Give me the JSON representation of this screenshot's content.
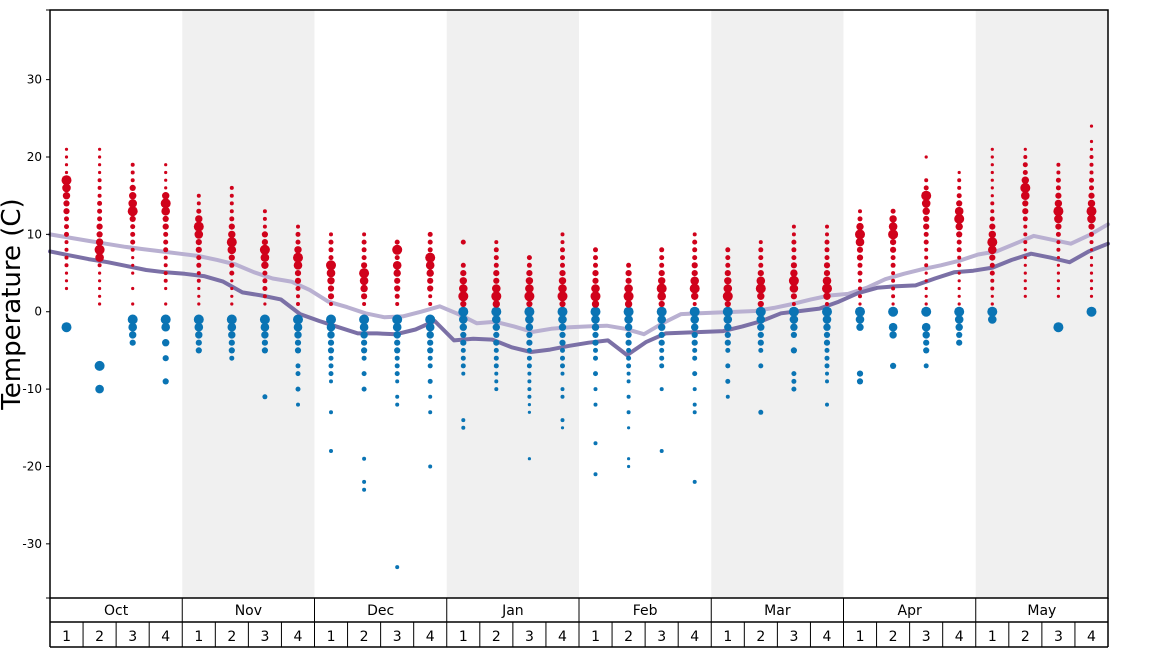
{
  "chart_data": {
    "type": "scatter",
    "ylabel": "Temperature (C)",
    "ylim": [
      -37,
      39
    ],
    "y_ticks": [
      "30",
      "20",
      "10",
      "0",
      "-10",
      "-20",
      "-30"
    ],
    "y_tick_values": [
      30,
      20,
      10,
      0,
      -10,
      -20,
      -30
    ],
    "months": [
      "Oct",
      "Nov",
      "Dec",
      "Jan",
      "Feb",
      "Mar",
      "Apr",
      "May"
    ],
    "weeks": [
      "1",
      "2",
      "3",
      "4"
    ],
    "shaded_months": [
      "Nov",
      "Jan",
      "Mar",
      "May"
    ],
    "colors": {
      "warm_dots": "#d0021b",
      "cold_dots": "#0a74b4",
      "line_upper": "#b9b0d1",
      "line_lower": "#7b70a6",
      "shade": "#f0f0f0"
    },
    "series": [
      {
        "values": [
          10,
          9.6,
          9.2,
          8.8,
          8.4,
          8.1,
          7.8,
          7.5,
          7.2,
          6.7,
          6.1,
          5.1,
          4.3,
          3.9,
          2.8,
          1.3,
          0.6,
          -0.2,
          -0.7,
          -0.6,
          0,
          0.7,
          -0.3,
          -1.5,
          -1.3,
          -1.9,
          -2.6,
          -2.2,
          -2,
          -1.9,
          -1.8,
          -2.2,
          -2.9,
          -1.5,
          -0.3,
          -0.2,
          -0.1,
          0,
          0.1,
          0.5,
          1,
          1.6,
          2.1,
          2.3,
          3.1,
          4.2,
          4.9,
          5.5,
          6,
          6.6,
          7.4,
          7.8,
          8.8,
          9.8,
          9.3,
          8.8,
          9.9,
          11.3
        ]
      },
      {
        "values": [
          7.8,
          7.3,
          6.8,
          6.4,
          5.9,
          5.4,
          5.1,
          4.9,
          4.6,
          3.9,
          2.5,
          2.1,
          1.6,
          -0.3,
          -1.2,
          -2,
          -2.8,
          -2.8,
          -2.9,
          -2.3,
          -1.2,
          -3.7,
          -3.5,
          -3.6,
          -4.6,
          -5.2,
          -4.9,
          -4.4,
          -4,
          -3.7,
          -5.6,
          -3.9,
          -2.8,
          -2.7,
          -2.6,
          -2.5,
          -1.9,
          -1.2,
          -0.2,
          0.1,
          0.4,
          1.3,
          2.4,
          3.1,
          3.3,
          3.4,
          4.3,
          5.1,
          5.3,
          5.7,
          6.7,
          7.5,
          7,
          6.4,
          7.8,
          8.8
        ]
      }
    ],
    "warm_observations": [
      [
        17,
        16,
        15,
        14,
        13,
        12,
        11,
        10,
        9,
        8,
        7,
        6,
        5,
        4,
        3,
        18,
        19,
        20,
        21
      ],
      [
        8,
        7,
        9,
        10,
        11,
        12,
        13,
        14,
        15,
        16,
        17,
        6,
        5,
        4,
        3,
        2,
        1,
        19,
        21,
        20,
        18
      ],
      [
        13,
        14,
        15,
        16,
        12,
        11,
        10,
        9,
        8,
        17,
        18,
        19,
        7,
        6,
        5,
        3,
        1
      ],
      [
        14,
        13,
        15,
        12,
        11,
        10,
        9,
        8,
        7,
        6,
        5,
        4,
        3,
        16,
        17,
        18,
        19,
        1
      ],
      [
        11,
        10,
        12,
        9,
        8,
        7,
        6,
        13,
        14,
        15,
        5,
        4,
        3,
        2,
        1
      ],
      [
        9,
        8,
        10,
        11,
        7,
        6,
        5,
        12,
        13,
        14,
        15,
        16,
        4,
        3,
        2,
        1
      ],
      [
        8,
        7,
        6,
        9,
        10,
        5,
        4,
        3,
        11,
        12,
        13,
        2,
        1
      ],
      [
        7,
        6,
        8,
        5,
        4,
        9,
        10,
        3,
        2,
        11,
        1
      ],
      [
        6,
        5,
        4,
        3,
        2,
        7,
        8,
        9,
        10,
        1
      ],
      [
        5,
        4,
        3,
        2,
        6,
        7,
        8,
        9,
        10,
        1
      ],
      [
        8,
        6,
        5,
        4,
        3,
        2,
        7,
        9,
        1
      ],
      [
        7,
        6,
        5,
        4,
        3,
        8,
        9,
        10,
        2,
        1
      ],
      [
        2,
        3,
        4,
        1,
        5,
        6,
        9
      ],
      [
        2,
        3,
        1,
        4,
        5,
        6,
        7,
        8,
        9
      ],
      [
        2,
        3,
        4,
        1,
        5,
        6,
        7
      ],
      [
        2,
        3,
        4,
        1,
        5,
        6,
        7,
        8,
        9,
        10
      ],
      [
        2,
        3,
        1,
        4,
        5,
        6,
        7,
        8
      ],
      [
        2,
        3,
        1,
        4,
        5,
        6
      ],
      [
        3,
        2,
        4,
        5,
        1,
        6,
        7,
        8
      ],
      [
        3,
        4,
        2,
        5,
        6,
        7,
        8,
        9,
        10,
        1
      ],
      [
        2,
        3,
        4,
        1,
        5,
        6,
        7,
        8
      ],
      [
        3,
        4,
        2,
        5,
        1,
        6,
        7,
        8,
        9
      ],
      [
        4,
        3,
        5,
        2,
        6,
        7,
        8,
        9,
        10,
        11,
        1
      ],
      [
        3,
        4,
        2,
        5,
        6,
        7,
        8,
        9,
        10,
        11,
        1
      ],
      [
        10,
        9,
        11,
        8,
        7,
        12,
        6,
        5,
        4,
        3,
        13,
        2,
        1
      ],
      [
        10,
        11,
        12,
        9,
        8,
        7,
        13,
        6,
        5,
        4,
        3,
        2,
        1
      ],
      [
        15,
        14,
        13,
        12,
        11,
        16,
        10,
        9,
        8,
        17,
        7,
        6,
        5,
        4,
        3,
        2,
        1,
        20
      ],
      [
        12,
        13,
        11,
        14,
        10,
        9,
        15,
        8,
        7,
        6,
        16,
        17,
        18,
        5,
        4,
        3,
        2,
        1
      ],
      [
        9,
        8,
        10,
        11,
        7,
        6,
        12,
        5,
        4,
        13,
        14,
        3,
        15,
        16,
        17,
        18,
        19,
        20,
        21,
        2,
        1
      ],
      [
        16,
        15,
        17,
        14,
        13,
        12,
        18,
        19,
        11,
        10,
        20,
        9,
        8,
        21,
        7,
        6,
        5,
        4,
        3,
        2
      ],
      [
        13,
        12,
        14,
        15,
        11,
        16,
        10,
        17,
        9,
        18,
        19,
        8,
        7,
        6,
        5,
        4,
        3,
        2
      ],
      [
        13,
        12,
        14,
        11,
        15,
        16,
        10,
        17,
        9,
        18,
        19,
        20,
        21,
        8,
        7,
        6,
        22,
        24,
        3,
        2,
        5,
        4
      ]
    ],
    "cold_observations": [
      [
        -2
      ],
      [
        -7,
        -10
      ],
      [
        -1,
        -2,
        -3,
        -4
      ],
      [
        -1,
        -2,
        -4,
        -6,
        -9
      ],
      [
        -1,
        -2,
        -3,
        -4,
        -5
      ],
      [
        -1,
        -2,
        -3,
        -4,
        -5,
        -6
      ],
      [
        -1,
        -2,
        -3,
        -4,
        -5,
        -11
      ],
      [
        -1,
        -2,
        -3,
        -4,
        -5,
        -7,
        -8,
        -10,
        -12
      ],
      [
        -1,
        -2,
        -3,
        -4,
        -5,
        -6,
        -7,
        -8,
        -9,
        -13,
        -18
      ],
      [
        -1,
        -2,
        -3,
        -4,
        -5,
        -6,
        -8,
        -10,
        -19,
        -22,
        -23
      ],
      [
        -1,
        -2,
        -3,
        -4,
        -5,
        -6,
        -7,
        -8,
        -9,
        -11,
        -12,
        -33
      ],
      [
        -1,
        -2,
        -3,
        -4,
        -5,
        -6,
        -7,
        -9,
        -11,
        -13,
        -20
      ],
      [
        0,
        -1,
        -2,
        -3,
        -4,
        -5,
        -6,
        -7,
        -8,
        -14,
        -15
      ],
      [
        0,
        -1,
        -2,
        -3,
        -4,
        -5,
        -6,
        -7,
        -8,
        -9,
        -10
      ],
      [
        0,
        -1,
        -2,
        -3,
        -4,
        -5,
        -6,
        -7,
        -8,
        -9,
        -10,
        -11,
        -12,
        -13,
        -19
      ],
      [
        0,
        -1,
        -2,
        -3,
        -4,
        -5,
        -6,
        -7,
        -8,
        -10,
        -11,
        -14,
        -15
      ],
      [
        0,
        -1,
        -2,
        -3,
        -4,
        -5,
        -6,
        -8,
        -10,
        -12,
        -17,
        -21
      ],
      [
        0,
        -1,
        -2,
        -3,
        -4,
        -5,
        -6,
        -7,
        -8,
        -9,
        -11,
        -13,
        -15,
        -19,
        -20
      ],
      [
        0,
        -1,
        -2,
        -3,
        -4,
        -5,
        -6,
        -7,
        -10,
        -18
      ],
      [
        0,
        -1,
        -2,
        -3,
        -4,
        -5,
        -6,
        -8,
        -10,
        -12,
        -13,
        -22
      ],
      [
        0,
        -1,
        -2,
        -3,
        -4,
        -5,
        -7,
        -9,
        -11
      ],
      [
        0,
        -1,
        -2,
        -3,
        -4,
        -5,
        -7,
        -13
      ],
      [
        0,
        -1,
        -2,
        -3,
        -5,
        -8,
        -9,
        -10
      ],
      [
        0,
        -1,
        -2,
        -3,
        -4,
        -5,
        -6,
        -7,
        -8,
        -9,
        -12
      ],
      [
        0,
        -1,
        -2,
        -8,
        -9
      ],
      [
        0,
        -2,
        -3,
        -7
      ],
      [
        0,
        -2,
        -3,
        -4,
        -5,
        -7
      ],
      [
        0,
        -1,
        -2,
        -3,
        -4
      ],
      [
        0,
        -1
      ],
      [],
      [
        -2
      ],
      [
        0
      ]
    ]
  }
}
